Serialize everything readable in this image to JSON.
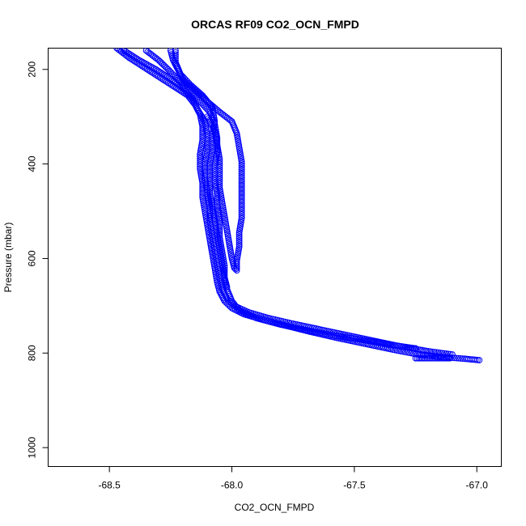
{
  "chart_data": {
    "type": "scatter",
    "title": "ORCAS RF09 CO2_OCN_FMPD",
    "xlabel": "CO2_OCN_FMPD",
    "ylabel": "Pressure (mbar)",
    "xlim": [
      -68.75,
      -66.9
    ],
    "ylim": [
      1040,
      155
    ],
    "y_reversed": true,
    "grid": false,
    "legend": "none",
    "x_ticks": [
      -68.5,
      -68.0,
      -67.5,
      -67.0
    ],
    "x_tick_labels": [
      "-68.5",
      "-68.0",
      "-67.5",
      "-67.0"
    ],
    "y_ticks": [
      200,
      400,
      600,
      800,
      1000
    ],
    "y_tick_labels": [
      "200",
      "400",
      "600",
      "800",
      "1000"
    ],
    "marker": "open-circle",
    "color": "#0000ff",
    "series": [
      {
        "points": [
          [
            -68.47,
            155
          ],
          [
            -68.42,
            175
          ],
          [
            -68.36,
            195
          ],
          [
            -68.3,
            215
          ],
          [
            -68.24,
            235
          ],
          [
            -68.18,
            255
          ],
          [
            -68.15,
            275
          ],
          [
            -68.13,
            295
          ],
          [
            -68.12,
            320
          ],
          [
            -68.12,
            350
          ],
          [
            -68.13,
            380
          ],
          [
            -68.13,
            410
          ],
          [
            -68.12,
            440
          ],
          [
            -68.12,
            470
          ],
          [
            -68.11,
            500
          ],
          [
            -68.1,
            530
          ],
          [
            -68.09,
            560
          ],
          [
            -68.08,
            590
          ],
          [
            -68.07,
            620
          ],
          [
            -68.06,
            650
          ],
          [
            -68.05,
            670
          ],
          [
            -68.03,
            690
          ],
          [
            -68.0,
            705
          ],
          [
            -67.95,
            718
          ],
          [
            -67.87,
            730
          ],
          [
            -67.78,
            742
          ],
          [
            -67.68,
            755
          ],
          [
            -67.57,
            768
          ],
          [
            -67.46,
            780
          ],
          [
            -67.35,
            792
          ],
          [
            -67.25,
            802
          ],
          [
            -67.15,
            808
          ],
          [
            -67.05,
            812
          ],
          [
            -66.99,
            815
          ]
        ]
      },
      {
        "points": [
          [
            -68.44,
            160
          ],
          [
            -68.38,
            180
          ],
          [
            -68.31,
            200
          ],
          [
            -68.25,
            220
          ],
          [
            -68.2,
            240
          ],
          [
            -68.16,
            262
          ],
          [
            -68.14,
            285
          ],
          [
            -68.11,
            310
          ],
          [
            -68.1,
            340
          ],
          [
            -68.1,
            370
          ],
          [
            -68.11,
            400
          ],
          [
            -68.11,
            430
          ],
          [
            -68.1,
            460
          ],
          [
            -68.09,
            490
          ],
          [
            -68.09,
            520
          ],
          [
            -68.08,
            550
          ],
          [
            -68.07,
            580
          ],
          [
            -68.06,
            610
          ],
          [
            -68.05,
            640
          ],
          [
            -68.04,
            665
          ],
          [
            -68.02,
            685
          ],
          [
            -67.99,
            700
          ],
          [
            -67.93,
            714
          ],
          [
            -67.85,
            726
          ],
          [
            -67.75,
            738
          ],
          [
            -67.64,
            750
          ],
          [
            -67.53,
            762
          ],
          [
            -67.42,
            774
          ],
          [
            -67.31,
            786
          ],
          [
            -67.2,
            796
          ],
          [
            -67.1,
            803
          ]
        ]
      },
      {
        "points": [
          [
            -68.35,
            160
          ],
          [
            -68.3,
            180
          ],
          [
            -68.26,
            200
          ],
          [
            -68.22,
            222
          ],
          [
            -68.18,
            245
          ],
          [
            -68.13,
            268
          ],
          [
            -68.09,
            290
          ],
          [
            -68.07,
            315
          ],
          [
            -68.06,
            345
          ],
          [
            -68.06,
            375
          ],
          [
            -68.07,
            405
          ],
          [
            -68.07,
            435
          ],
          [
            -68.06,
            465
          ],
          [
            -68.06,
            495
          ],
          [
            -68.05,
            525
          ],
          [
            -68.05,
            555
          ],
          [
            -68.04,
            585
          ],
          [
            -68.03,
            615
          ],
          [
            -68.03,
            645
          ],
          [
            -68.02,
            665
          ],
          [
            -68.0,
            690
          ],
          [
            -67.97,
            710
          ],
          [
            -67.9,
            726
          ],
          [
            -67.8,
            740
          ],
          [
            -67.69,
            752
          ],
          [
            -67.58,
            763
          ],
          [
            -67.47,
            772
          ],
          [
            -67.36,
            782
          ],
          [
            -67.25,
            790
          ]
        ]
      },
      {
        "points": [
          [
            -68.25,
            160
          ],
          [
            -68.24,
            180
          ],
          [
            -68.22,
            200
          ],
          [
            -68.2,
            222
          ],
          [
            -68.15,
            245
          ],
          [
            -68.1,
            268
          ],
          [
            -68.05,
            290
          ],
          [
            -68.0,
            310
          ],
          [
            -67.98,
            335
          ],
          [
            -67.97,
            365
          ],
          [
            -67.96,
            395
          ],
          [
            -67.96,
            425
          ],
          [
            -67.96,
            455
          ],
          [
            -67.96,
            485
          ],
          [
            -67.96,
            515
          ],
          [
            -67.97,
            545
          ],
          [
            -67.97,
            575
          ],
          [
            -67.98,
            605
          ],
          [
            -67.98,
            625
          ],
          [
            -67.99,
            620
          ],
          [
            -68.0,
            600
          ],
          [
            -68.01,
            570
          ],
          [
            -68.02,
            540
          ],
          [
            -68.03,
            510
          ],
          [
            -68.04,
            480
          ],
          [
            -68.05,
            450
          ],
          [
            -68.05,
            420
          ],
          [
            -68.05,
            390
          ],
          [
            -68.06,
            360
          ],
          [
            -68.07,
            330
          ],
          [
            -68.1,
            300
          ]
        ]
      },
      {
        "points": [
          [
            -68.23,
            160
          ],
          [
            -68.23,
            185
          ],
          [
            -68.21,
            210
          ],
          [
            -68.17,
            232
          ],
          [
            -68.12,
            255
          ],
          [
            -68.08,
            280
          ],
          [
            -68.07,
            310
          ],
          [
            -68.08,
            340
          ],
          [
            -68.08,
            370
          ],
          [
            -68.09,
            400
          ],
          [
            -68.09,
            430
          ],
          [
            -68.09,
            460
          ],
          [
            -68.08,
            490
          ],
          [
            -68.07,
            520
          ],
          [
            -68.06,
            550
          ],
          [
            -68.05,
            580
          ],
          [
            -68.04,
            610
          ],
          [
            -68.03,
            640
          ],
          [
            -68.02,
            660
          ]
        ]
      },
      {
        "points": [
          [
            -67.25,
            811
          ],
          [
            -67.23,
            811
          ],
          [
            -67.21,
            811
          ],
          [
            -67.19,
            811
          ],
          [
            -67.17,
            811
          ],
          [
            -67.15,
            811
          ],
          [
            -67.13,
            811
          ],
          [
            -67.11,
            811
          ]
        ]
      }
    ]
  }
}
